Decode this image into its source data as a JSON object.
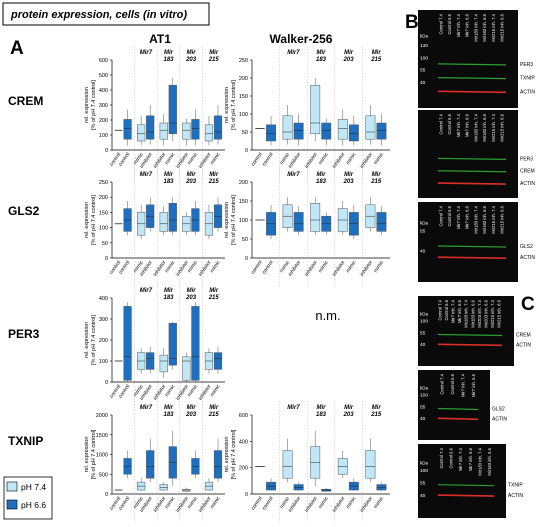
{
  "header": {
    "title": "protein expression, cells (in vitro)"
  },
  "panels": {
    "a": "A",
    "b": "B",
    "c": "C"
  },
  "columns": {
    "at1": "AT1",
    "walker": "Walker-256"
  },
  "mirs": [
    "Mir7",
    "Mir 183",
    "Mir 203",
    "Mir 215"
  ],
  "rows": [
    {
      "label": "CREM",
      "at1_ticks": [
        "600",
        "500",
        "400",
        "300",
        "200",
        "100",
        "0"
      ],
      "wk_ticks": [
        "250",
        "200",
        "150",
        "100",
        "50",
        "0"
      ]
    },
    {
      "label": "GLS2",
      "at1_ticks": [
        "250",
        "200",
        "150",
        "100",
        "50",
        "0"
      ],
      "wk_ticks": [
        "200",
        "150",
        "100",
        "50",
        "0"
      ]
    },
    {
      "label": "PER3",
      "at1_ticks": [
        "400",
        "300",
        "200",
        "100",
        "0"
      ],
      "wk_ticks": []
    },
    {
      "label": "TXNIP",
      "at1_ticks": [
        "2000",
        "1500",
        "1000",
        "500",
        "0"
      ],
      "wk_ticks": [
        "600",
        "400",
        "200",
        "0"
      ]
    }
  ],
  "ylabel_line1": "rel. expression",
  "ylabel_line2": "[% of pH 7.4 control]",
  "xcats": [
    "control",
    "control",
    "mimic",
    "inhibitor",
    "inhibitor",
    "mimic",
    "inhibitor",
    "mimic",
    "inhibitor",
    "mimic"
  ],
  "not_measured": "n.m.",
  "legend": {
    "ph74": "pH 7.4",
    "ph66": "pH 6.6",
    "color74": "#bfe7f7",
    "color66": "#1f6fbf"
  },
  "blots": {
    "kda": "kDa",
    "lanes_b": [
      "Control 7.4",
      "Control 6.6",
      "Mir7 inh. 7.4",
      "Mir7 inh. 6.6",
      "Mir183 inh. 7.4",
      "Mir183 inh. 6.6",
      "Mir215 inh. 7.4",
      "Mir215 inh. 6.6"
    ],
    "lanes_c": [
      "Control 7.4",
      "Control 6.6",
      "Mir7 inh. 7.4",
      "Mir7 inh. 6.6",
      "Mir183 inh. 7.4",
      "Mir183 inh. 6.6",
      "Mir203 inh. 7.4",
      "Mir203 inh. 6.6",
      "Mir215 inh. 7.4",
      "Mir215 inh. 6.6"
    ],
    "lanes_c2": [
      "Control 7.4",
      "Control 6.6",
      "Mir7 inh. 7.4",
      "Mir7 inh. 6.6"
    ],
    "lanes_c3": [
      "Control 7.4",
      "Control 6.6",
      "Mir7 inh. 7.4",
      "Mir7 inh. 6.6",
      "Mir183 inh. 7.4",
      "Mir183 inh. 6.6"
    ],
    "b1": {
      "marks": [
        "130",
        "100",
        "55",
        "40"
      ],
      "bands": [
        "PER3",
        "TXNIP",
        "ACTIN"
      ]
    },
    "b2": {
      "bands": [
        "PER3",
        "CREM",
        "ACTIN"
      ]
    },
    "b3": {
      "marks": [
        "55",
        "40"
      ],
      "bands": [
        "GLS2",
        "ACTIN"
      ]
    },
    "c1": {
      "marks": [
        "100",
        "55",
        "40"
      ],
      "bands": [
        "CREM",
        "ACTIN"
      ]
    },
    "c2": {
      "marks": [
        "100",
        "55",
        "40"
      ],
      "bands": [
        "GLS2",
        "ACTIN"
      ]
    },
    "c3": {
      "marks": [
        "100",
        "55",
        "40"
      ],
      "bands": [
        "TXNIP",
        "ACTIN"
      ]
    }
  }
}
